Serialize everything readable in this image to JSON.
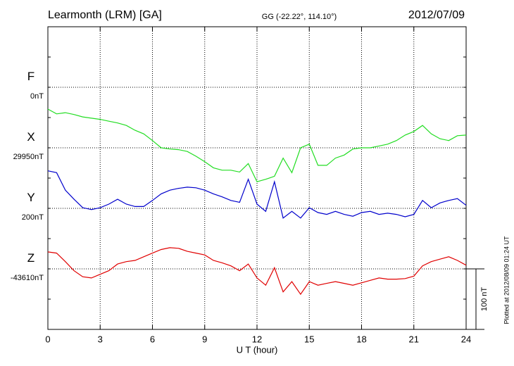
{
  "chart_data": {
    "type": "line",
    "title": "Learmonth (LRM)  [GA]",
    "subtitle": "GG (-22.22°, 114.10°)",
    "date": "2012/07/09",
    "xlabel": "U T (hour)",
    "footnote": "Plotted at 2012/08/09 01:24  UT",
    "xlim": [
      0,
      24
    ],
    "xticks": [
      0,
      3,
      6,
      9,
      12,
      15,
      18,
      21,
      24
    ],
    "grid": true,
    "scale": {
      "value": 100,
      "label": "100 nT"
    },
    "x": [
      0,
      0.5,
      1,
      1.5,
      2,
      2.5,
      3,
      3.5,
      4,
      4.5,
      5,
      5.5,
      6,
      6.5,
      7,
      7.5,
      8,
      8.5,
      9,
      9.5,
      10,
      10.5,
      11,
      11.5,
      12,
      12.5,
      13,
      13.5,
      14,
      14.5,
      15,
      15.5,
      16,
      16.5,
      17,
      17.5,
      18,
      18.5,
      19,
      19.5,
      20,
      20.5,
      21,
      21.5,
      22,
      22.5,
      23,
      23.5,
      24
    ],
    "series": [
      {
        "name": "F",
        "color": "#f0a000",
        "baseline": {
          "value": 0,
          "label": "0nT"
        }
      },
      {
        "name": "X",
        "color": "#22dd22",
        "baseline": {
          "value": 29950,
          "label": "29950nT"
        },
        "values": [
          30014,
          30006,
          30008,
          30005,
          30001,
          29999,
          29997,
          29994,
          29991,
          29987,
          29979,
          29973,
          29962,
          29950,
          29948,
          29947,
          29944,
          29936,
          29927,
          29917,
          29913,
          29913,
          29910,
          29924,
          29894,
          29898,
          29903,
          29933,
          29909,
          29950,
          29956,
          29921,
          29921,
          29933,
          29938,
          29948,
          29950,
          29950,
          29953,
          29956,
          29962,
          29971,
          29977,
          29987,
          29973,
          29965,
          29962,
          29970,
          29971
        ]
      },
      {
        "name": "Y",
        "color": "#0000cc",
        "baseline": {
          "value": 200,
          "label": "200nT"
        },
        "values": [
          262,
          259,
          230,
          215,
          201,
          198,
          201,
          207,
          215,
          207,
          203,
          203,
          213,
          224,
          230,
          233,
          235,
          234,
          230,
          224,
          219,
          213,
          210,
          248,
          207,
          195,
          244,
          184,
          195,
          184,
          201,
          193,
          190,
          195,
          190,
          187,
          193,
          195,
          190,
          192,
          190,
          186,
          190,
          213,
          201,
          209,
          213,
          216,
          205
        ]
      },
      {
        "name": "Z",
        "color": "#e00000",
        "baseline": {
          "value": -43610,
          "label": "-43610nT"
        },
        "values": [
          -43582,
          -43584,
          -43598,
          -43613,
          -43623,
          -43625,
          -43619,
          -43613,
          -43602,
          -43598,
          -43596,
          -43590,
          -43584,
          -43578,
          -43575,
          -43576,
          -43581,
          -43584,
          -43587,
          -43596,
          -43600,
          -43605,
          -43613,
          -43602,
          -43625,
          -43637,
          -43608,
          -43648,
          -43631,
          -43652,
          -43631,
          -43637,
          -43634,
          -43631,
          -43634,
          -43637,
          -43633,
          -43629,
          -43625,
          -43627,
          -43627,
          -43626,
          -43622,
          -43605,
          -43598,
          -43594,
          -43590,
          -43596,
          -43604
        ]
      }
    ]
  }
}
